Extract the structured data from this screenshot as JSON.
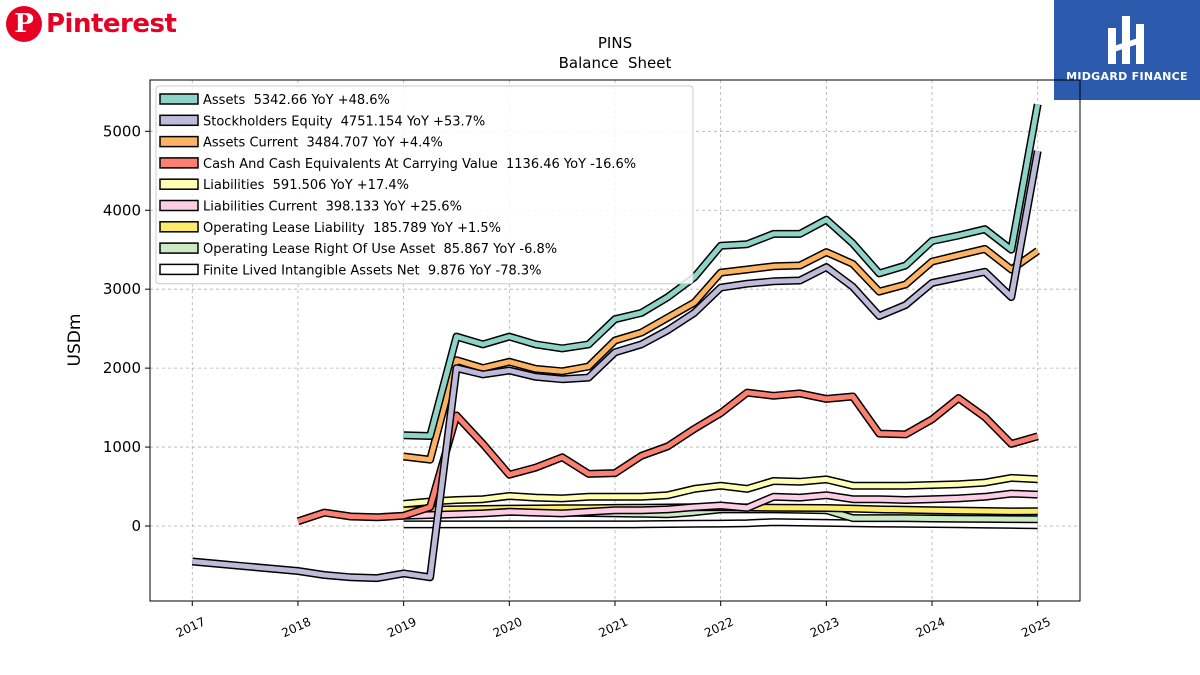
{
  "brand_left": {
    "glyph": "P",
    "name": "Pinterest",
    "color": "#e60023"
  },
  "brand_right": {
    "name": "MIDGARD FINANCE",
    "color": "#2c5bad"
  },
  "chart_data": {
    "type": "line",
    "title": "PINS",
    "subtitle": "Balance  Sheet",
    "ylabel": "USDm",
    "xlabel": "",
    "xlim": [
      2016.6,
      2025.4
    ],
    "ylim": [
      -950,
      5650
    ],
    "x_ticks": [
      "2017",
      "2018",
      "2019",
      "2020",
      "2021",
      "2022",
      "2023",
      "2024",
      "2025"
    ],
    "y_ticks": [
      "0",
      "1000",
      "2000",
      "3000",
      "4000",
      "5000"
    ],
    "grid": true,
    "legend_position": "top-left",
    "series": [
      {
        "name": "Assets",
        "legend_label": "Assets  5342.66 YoY +48.6%",
        "color": "#8dd3c7",
        "x": [
          2019.0,
          2019.25,
          2019.5,
          2019.75,
          2020.0,
          2020.25,
          2020.5,
          2020.75,
          2021.0,
          2021.25,
          2021.5,
          2021.75,
          2022.0,
          2022.25,
          2022.5,
          2022.75,
          2023.0,
          2023.25,
          2023.5,
          2023.75,
          2024.0,
          2024.25,
          2024.5,
          2024.75,
          2025.0
        ],
        "y": [
          1150,
          1140,
          2400,
          2300,
          2400,
          2300,
          2250,
          2300,
          2620,
          2700,
          2900,
          3150,
          3550,
          3570,
          3700,
          3700,
          3880,
          3580,
          3200,
          3300,
          3610,
          3680,
          3760,
          3500,
          5342.66
        ]
      },
      {
        "name": "Stockholders Equity",
        "legend_label": "Stockholders Equity  4751.154 YoY +53.7%",
        "color": "#bebada",
        "x": [
          2017.0,
          2017.25,
          2017.5,
          2017.75,
          2018.0,
          2018.25,
          2018.5,
          2018.75,
          2019.0,
          2019.25,
          2019.5,
          2019.75,
          2020.0,
          2020.25,
          2020.5,
          2020.75,
          2021.0,
          2021.25,
          2021.5,
          2021.75,
          2022.0,
          2022.25,
          2022.5,
          2022.75,
          2023.0,
          2023.25,
          2023.5,
          2023.75,
          2024.0,
          2024.25,
          2024.5,
          2024.75,
          2025.0
        ],
        "y": [
          -450,
          -480,
          -510,
          -540,
          -570,
          -620,
          -650,
          -660,
          -600,
          -650,
          2000,
          1920,
          1970,
          1890,
          1860,
          1880,
          2200,
          2300,
          2480,
          2700,
          3020,
          3070,
          3100,
          3110,
          3280,
          3030,
          2660,
          2800,
          3080,
          3150,
          3220,
          2900,
          4751.154
        ]
      },
      {
        "name": "Assets Current",
        "legend_label": "Assets Current  3484.707 YoY +4.4%",
        "color": "#fdb462",
        "x": [
          2019.0,
          2019.25,
          2019.5,
          2019.75,
          2020.0,
          2020.25,
          2020.5,
          2020.75,
          2021.0,
          2021.25,
          2021.5,
          2021.75,
          2022.0,
          2022.25,
          2022.5,
          2022.75,
          2023.0,
          2023.25,
          2023.5,
          2023.75,
          2024.0,
          2024.25,
          2024.5,
          2024.75,
          2025.0
        ],
        "y": [
          880,
          840,
          2100,
          2000,
          2080,
          1990,
          1960,
          2020,
          2350,
          2450,
          2640,
          2830,
          3210,
          3250,
          3290,
          3300,
          3470,
          3320,
          2970,
          3060,
          3350,
          3430,
          3510,
          3250,
          3484.707
        ]
      },
      {
        "name": "Cash And Cash Equivalents At Carrying Value",
        "legend_label": "Cash And Cash Equivalents At Carrying Value  1136.46 YoY -16.6%",
        "color": "#fb8072",
        "x": [
          2018.0,
          2018.25,
          2018.5,
          2018.75,
          2019.0,
          2019.25,
          2019.5,
          2019.75,
          2020.0,
          2020.25,
          2020.5,
          2020.75,
          2021.0,
          2021.25,
          2021.5,
          2021.75,
          2022.0,
          2022.25,
          2022.5,
          2022.75,
          2023.0,
          2023.25,
          2023.5,
          2023.75,
          2024.0,
          2024.25,
          2024.5,
          2024.75,
          2025.0
        ],
        "y": [
          60,
          170,
          120,
          110,
          130,
          240,
          1400,
          1040,
          650,
          740,
          870,
          660,
          670,
          890,
          1010,
          1230,
          1430,
          1690,
          1650,
          1680,
          1610,
          1640,
          1170,
          1160,
          1350,
          1620,
          1380,
          1040,
          1136.46
        ]
      },
      {
        "name": "Liabilities",
        "legend_label": "Liabilities  591.506 YoY +17.4%",
        "color": "#ffffb3",
        "x": [
          2019.0,
          2019.25,
          2019.5,
          2019.75,
          2020.0,
          2020.25,
          2020.5,
          2020.75,
          2021.0,
          2021.25,
          2021.5,
          2021.75,
          2022.0,
          2022.25,
          2022.5,
          2022.75,
          2023.0,
          2023.25,
          2023.5,
          2023.75,
          2024.0,
          2024.25,
          2024.5,
          2024.75,
          2025.0
        ],
        "y": [
          280,
          310,
          330,
          340,
          380,
          360,
          350,
          370,
          370,
          370,
          390,
          470,
          510,
          470,
          570,
          560,
          590,
          510,
          510,
          510,
          520,
          530,
          550,
          610,
          591.506
        ]
      },
      {
        "name": "Liabilities Current",
        "legend_label": "Liabilities Current  398.133 YoY +25.6%",
        "color": "#fccde5",
        "x": [
          2019.0,
          2019.25,
          2019.5,
          2019.75,
          2020.0,
          2020.25,
          2020.5,
          2020.75,
          2021.0,
          2021.25,
          2021.5,
          2021.75,
          2022.0,
          2022.25,
          2022.5,
          2022.75,
          2023.0,
          2023.25,
          2023.5,
          2023.75,
          2024.0,
          2024.25,
          2024.5,
          2024.75,
          2025.0
        ],
        "y": [
          130,
          140,
          150,
          160,
          180,
          170,
          160,
          180,
          200,
          200,
          210,
          240,
          260,
          230,
          370,
          360,
          390,
          340,
          340,
          330,
          340,
          350,
          370,
          410,
          398.133
        ]
      },
      {
        "name": "Operating Lease Liability",
        "legend_label": "Operating Lease Liability  185.789 YoY +1.5%",
        "color": "#fdeb6b",
        "x": [
          2019.0,
          2019.25,
          2019.5,
          2019.75,
          2020.0,
          2020.25,
          2020.5,
          2020.75,
          2021.0,
          2021.25,
          2021.5,
          2021.75,
          2022.0,
          2022.25,
          2022.5,
          2022.75,
          2023.0,
          2023.25,
          2023.5,
          2023.75,
          2024.0,
          2024.25,
          2024.5,
          2024.75,
          2025.0
        ],
        "y": [
          200,
          205,
          210,
          215,
          220,
          222,
          225,
          225,
          230,
          232,
          235,
          238,
          240,
          236,
          232,
          230,
          228,
          220,
          210,
          205,
          200,
          195,
          190,
          185,
          185.789
        ]
      },
      {
        "name": "Operating Lease Right Of Use Asset",
        "legend_label": "Operating Lease Right Of Use Asset  85.867 YoY -6.8%",
        "color": "#ccebc5",
        "x": [
          2019.0,
          2019.25,
          2019.5,
          2019.75,
          2020.0,
          2020.25,
          2020.5,
          2020.75,
          2021.0,
          2021.25,
          2021.5,
          2021.75,
          2022.0,
          2022.25,
          2022.5,
          2022.75,
          2023.0,
          2023.25,
          2023.5,
          2023.75,
          2024.0,
          2024.25,
          2024.5,
          2024.75,
          2025.0
        ],
        "y": [
          150,
          160,
          170,
          175,
          180,
          175,
          170,
          165,
          160,
          155,
          150,
          175,
          210,
          210,
          210,
          205,
          200,
          100,
          100,
          100,
          95,
          92,
          90,
          88,
          85.867
        ]
      },
      {
        "name": "Finite Lived Intangible Assets Net",
        "legend_label": "Finite Lived Intangible Assets Net  9.876 YoY -78.3%",
        "color": "#ffffff",
        "x": [
          2019.0,
          2019.25,
          2019.5,
          2019.75,
          2020.0,
          2020.25,
          2020.5,
          2020.75,
          2021.0,
          2021.25,
          2021.5,
          2021.75,
          2022.0,
          2022.25,
          2022.5,
          2022.75,
          2023.0,
          2023.25,
          2023.5,
          2023.75,
          2024.0,
          2024.25,
          2024.5,
          2024.75,
          2025.0
        ],
        "y": [
          20,
          20,
          20,
          20,
          20,
          20,
          20,
          20,
          20,
          22,
          25,
          28,
          30,
          35,
          50,
          45,
          40,
          35,
          30,
          28,
          25,
          22,
          18,
          14,
          9.876
        ]
      }
    ]
  }
}
